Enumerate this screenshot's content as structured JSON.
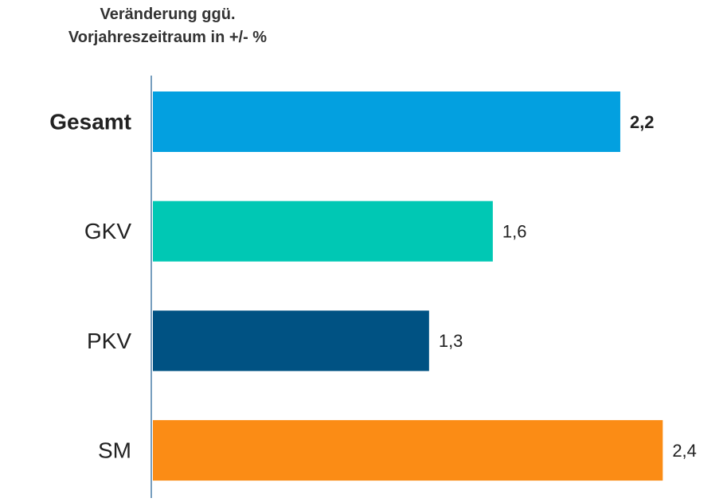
{
  "chart_data": {
    "type": "bar",
    "orientation": "horizontal",
    "title": "Veränderung ggü. Vorjahreszeitraum in +/- %",
    "categories": [
      "Gesamt",
      "GKV",
      "PKV",
      "SM"
    ],
    "values": [
      2.2,
      1.6,
      1.3,
      2.4
    ],
    "value_labels": [
      "2,2",
      "1,6",
      "1,3",
      "2,4"
    ],
    "colors": [
      "#03a0e0",
      "#00c8b4",
      "#005283",
      "#fb8c15"
    ]
  }
}
